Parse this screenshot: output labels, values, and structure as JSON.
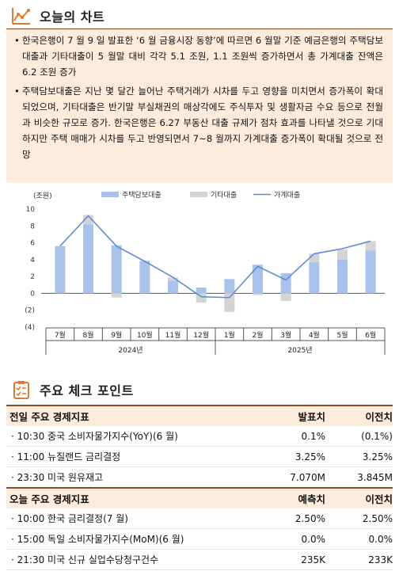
{
  "section1": {
    "title": "오늘의 차트",
    "bullets": [
      "한국은행이 7 월 9 일 발표한 ‘6 월 금융시장 동향’에 따르면 6 월말 기준 예금은행의 주택담보대출과 기타대출이 5 월말 대비 각각 5.1 조원, 1.1 조원씩 증가하면서 총 가계대출 잔액은 6.2 조원 증가",
      "주택담보대출은 지난 몇 달간 늘어난 주택거래가 시차를 두고 영향을 미치면서 증가폭이 확대되었으며, 기타대출은 반기말 부실채권의 매상각에도 주식투자 및 생활자금 수요 등으로 전월과 비슷한 규모로 증가. 한국은행은 6.27 부동산 대출 규제가 점차 효과를 나타낼 것으로 기대하지만 주택 매매가 시차를 두고 반영되면서 7~8 월까지 가계대출 증가폭이 확대될 것으로 전망"
    ]
  },
  "chart_data": {
    "type": "bar",
    "unit_label": "(조원)",
    "categories": [
      "7월",
      "8월",
      "9월",
      "10월",
      "11월",
      "12월",
      "1월",
      "2월",
      "3월",
      "4월",
      "5월",
      "6월"
    ],
    "year_labels": [
      "2024년",
      "2025년"
    ],
    "ylim": [
      -4,
      10
    ],
    "yticks": [
      "10",
      "8",
      "6",
      "4",
      "2",
      "0",
      "(2)",
      "(4)"
    ],
    "ytick_values": [
      10,
      8,
      6,
      4,
      2,
      0,
      -2,
      -4
    ],
    "series": [
      {
        "name": "주택담보대출",
        "kind": "bar",
        "color": "#a9c2ec",
        "values": [
          5.6,
          8.2,
          5.7,
          3.8,
          1.5,
          0.7,
          1.7,
          3.4,
          2.4,
          3.7,
          4.0,
          5.1
        ]
      },
      {
        "name": "기타대출",
        "kind": "bar",
        "color": "#d4d4d4",
        "values": [
          0,
          1.1,
          -0.5,
          0.1,
          0.4,
          -1.1,
          -2.2,
          -0.2,
          -0.9,
          1.0,
          1.2,
          1.1
        ]
      },
      {
        "name": "가계대출",
        "kind": "line",
        "color": "#5a8fd6",
        "values": [
          5.6,
          9.2,
          5.6,
          3.8,
          1.9,
          -0.4,
          -0.5,
          3.2,
          1.6,
          4.7,
          5.3,
          6.2
        ]
      }
    ],
    "legend_position": "top"
  },
  "section2": {
    "title": "주요 체크 포인트",
    "table1": {
      "headers": [
        "전일 주요 경제지표",
        "발표치",
        "이전치"
      ],
      "rows": [
        [
          "· 10:30 중국 소비자물가지수(YoY)(6 월)",
          "0.1%",
          "(0.1%)"
        ],
        [
          "· 11:00 뉴질랜드 금리결정",
          "3.25%",
          "3.25%"
        ],
        [
          "· 23:30 미국 원유재고",
          "7.070M",
          "3.845M"
        ]
      ]
    },
    "table2": {
      "headers": [
        "오늘 주요 경제지표",
        "예측치",
        "이전치"
      ],
      "rows": [
        [
          "· 10:00 한국 금리결정(7 월)",
          "2.50%",
          "2.50%"
        ],
        [
          "· 15:00 독일 소비자물가지수(MoM)(6 월)",
          "0.0%",
          "0.0%"
        ],
        [
          "· 21:30 미국 신규 실업수당청구건수",
          "235K",
          "233K"
        ]
      ]
    }
  },
  "colors": {
    "accent": "#8a4a28",
    "icon_orange": "#e07a2e",
    "box_bg": "#fdebdc"
  }
}
